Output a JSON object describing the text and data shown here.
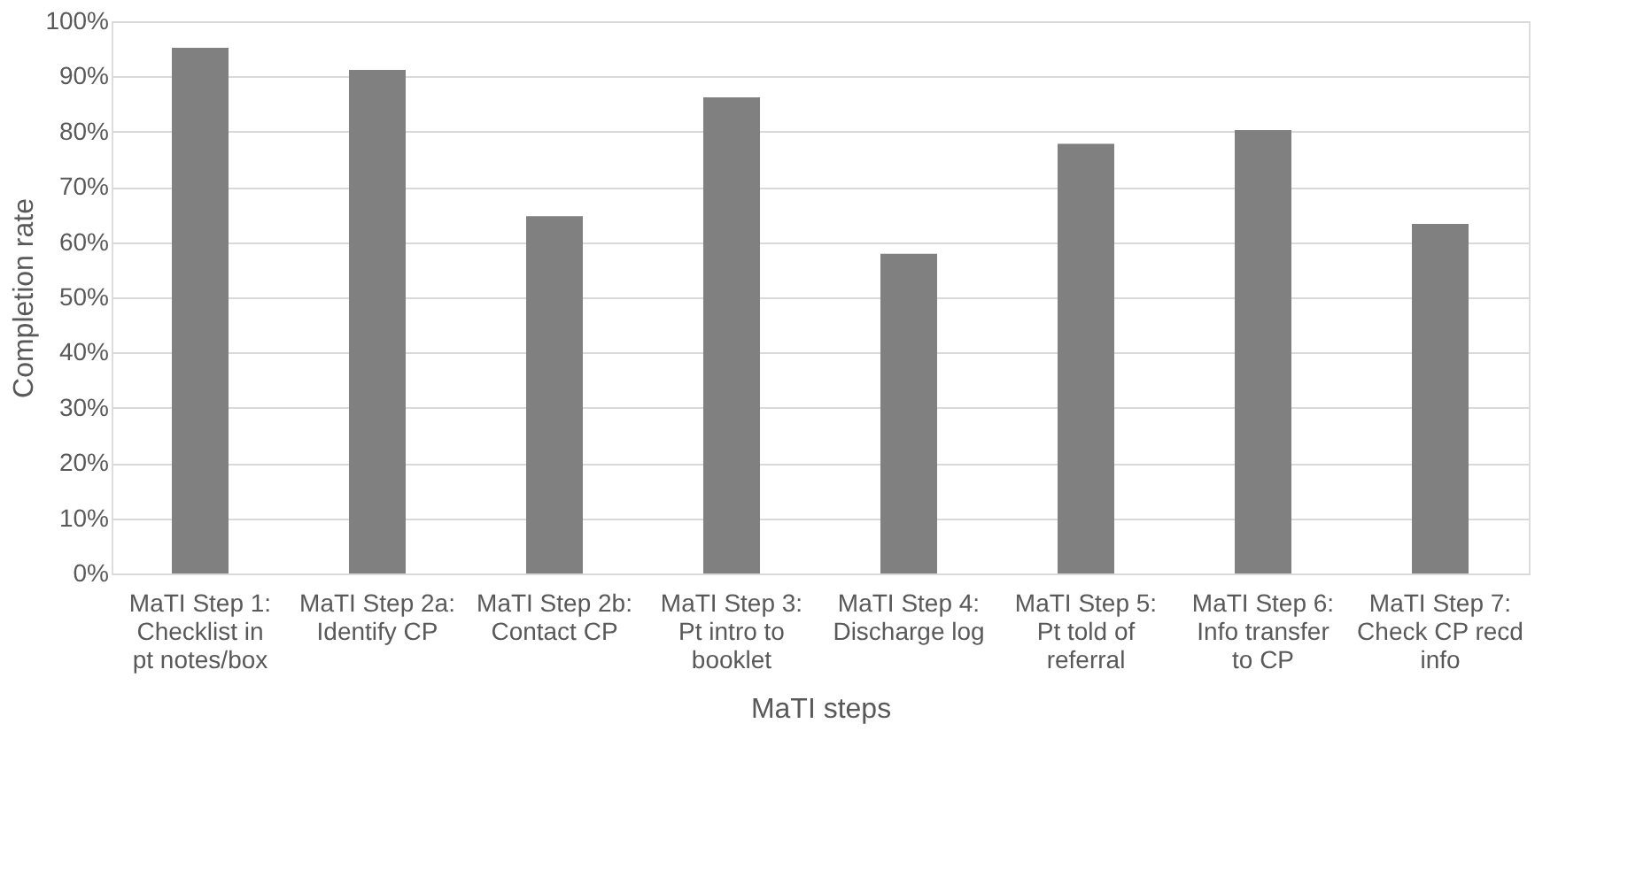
{
  "chart_data": {
    "type": "bar",
    "xlabel": "MaTI steps",
    "ylabel": "Completion rate",
    "categories": [
      "MaTI Step 1: Checklist in pt notes/box",
      "MaTI Step 2a: Identify CP",
      "MaTI Step 2b: Contact CP",
      "MaTI Step 3: Pt intro to booklet",
      "MaTI Step 4: Discharge log",
      "MaTI Step 5: Pt told of referral",
      "MaTI Step 6: Info transfer to CP",
      "MaTI Step 7: Check CP recd info"
    ],
    "values": [
      95.2,
      91.2,
      64.7,
      86.2,
      57.9,
      77.8,
      80.3,
      63.3
    ],
    "color": "#808080",
    "ylim": [
      0,
      100
    ],
    "yticks": [
      {
        "value": 0,
        "label": "0%"
      },
      {
        "value": 10,
        "label": "10%"
      },
      {
        "value": 20,
        "label": "20%"
      },
      {
        "value": 30,
        "label": "30%"
      },
      {
        "value": 40,
        "label": "40%"
      },
      {
        "value": 50,
        "label": "50%"
      },
      {
        "value": 60,
        "label": "60%"
      },
      {
        "value": 70,
        "label": "70%"
      },
      {
        "value": 80,
        "label": "80%"
      },
      {
        "value": 90,
        "label": "90%"
      },
      {
        "value": 100,
        "label": "100%"
      }
    ],
    "grid": "y"
  }
}
